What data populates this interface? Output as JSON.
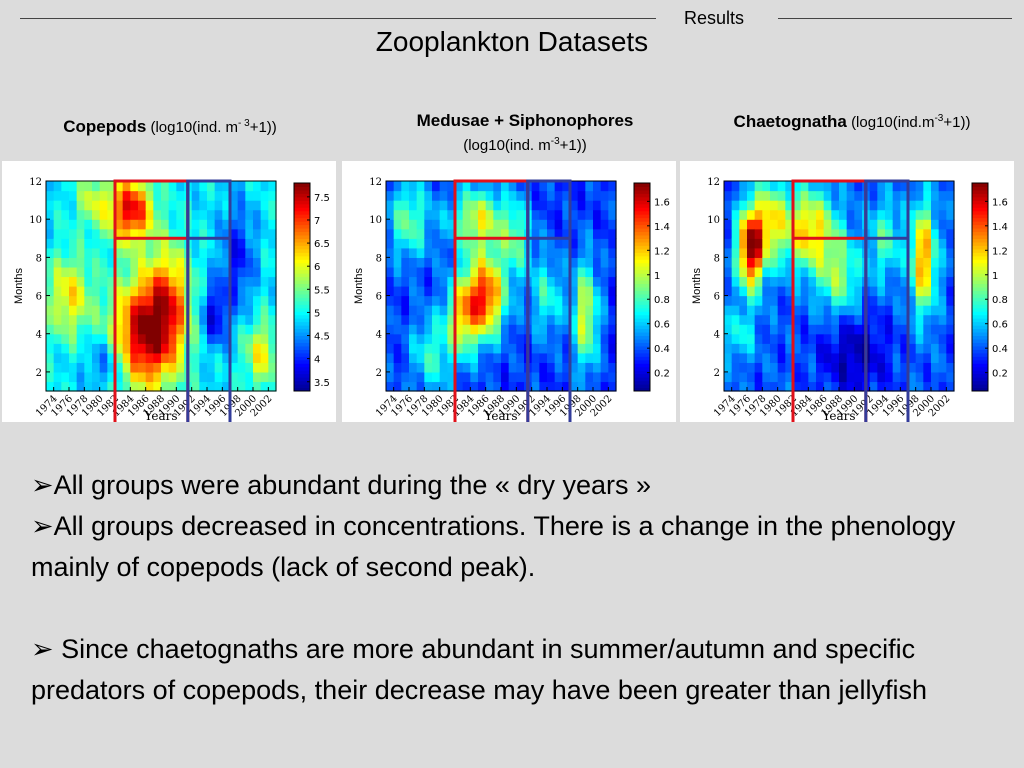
{
  "header": {
    "section": "Results",
    "title": "Zooplankton Datasets"
  },
  "colors": {
    "background": "#dcdcdc",
    "red_box": "#e0101a",
    "blue_box": "#333c9a",
    "colormap": [
      "#00008f",
      "#0000ff",
      "#0080ff",
      "#00ffff",
      "#80ff80",
      "#ffff00",
      "#ff8000",
      "#ff0000",
      "#800000"
    ]
  },
  "panels": [
    {
      "name_bold": "Copepods",
      "unit_prefix": "(log10(ind. m",
      "unit_sup": "- 3",
      "unit_suffix": "+1))"
    },
    {
      "name_bold": "Medusae + Siphonophores",
      "unit_prefix": "(log10(ind. m",
      "unit_sup": "-3",
      "unit_suffix": "+1))"
    },
    {
      "name_bold": "Chaetognatha",
      "unit_prefix": "(log10(ind.m",
      "unit_sup": "-3",
      "unit_suffix": "+1))"
    }
  ],
  "bullets": [
    "➢All groups were abundant during the « dry years »",
    "➢All groups decreased in concentrations. There is a change in the phenology mainly of copepods (lack of second peak).",
    "➢ Since chaetognaths are more abundant in summer/autumn and specific predators of copepods, their decrease may have been greater than jellyfish"
  ],
  "chart_data": [
    {
      "type": "heatmap",
      "title": "Copepods (log10(ind. m- 3+1))",
      "xlabel": "Years",
      "ylabel": "Months",
      "xlim": [
        1973,
        2003
      ],
      "ylim": [
        1,
        12
      ],
      "x_ticks": [
        "1974",
        "1976",
        "1978",
        "1980",
        "1982",
        "1984",
        "1986",
        "1988",
        "1990",
        "1992",
        "1994",
        "1996",
        "1998",
        "2000",
        "2002"
      ],
      "y_ticks": [
        "2",
        "4",
        "6",
        "8",
        "10",
        "12"
      ],
      "colorbar_ticks": [
        "3.5",
        "4",
        "4.5",
        "5",
        "5.5",
        "6",
        "6.5",
        "7",
        "7.5"
      ],
      "colorbar_range": [
        3.3,
        7.8
      ],
      "field": {
        "base": 4.9,
        "bumps": [
          {
            "x": 1986,
            "y": 4,
            "sx": 3,
            "sy": 2,
            "a": 2.8
          },
          {
            "x": 1984,
            "y": 10.5,
            "sx": 2,
            "sy": 1.2,
            "a": 2.5
          },
          {
            "x": 1989,
            "y": 6,
            "sx": 2,
            "sy": 2,
            "a": 1.4
          },
          {
            "x": 1976,
            "y": 6,
            "sx": 2,
            "sy": 1.5,
            "a": 1.3
          },
          {
            "x": 2001,
            "y": 3,
            "sx": 1.5,
            "sy": 1.2,
            "a": 1.2
          },
          {
            "x": 1979,
            "y": 11,
            "sx": 1.5,
            "sy": 1,
            "a": 0.9
          },
          {
            "x": 1995,
            "y": 5,
            "sx": 1.2,
            "sy": 1.2,
            "a": -1.2
          },
          {
            "x": 1998,
            "y": 8,
            "sx": 1.5,
            "sy": 2,
            "a": -1.0
          },
          {
            "x": 1981,
            "y": 2.5,
            "sx": 2,
            "sy": 1,
            "a": -0.8
          }
        ]
      },
      "boxes": [
        {
          "color": "red",
          "x0": 1982,
          "x1": 1991.5,
          "y0": 1,
          "y1": 12
        },
        {
          "color": "red",
          "x0": 1982,
          "x1": 1991.5,
          "y0": 9,
          "y1": 12
        },
        {
          "color": "blue",
          "x0": 1991.5,
          "x1": 1997,
          "y0": 1,
          "y1": 12
        },
        {
          "color": "blue",
          "x0": 1991.5,
          "x1": 1997,
          "y0": 9,
          "y1": 12
        }
      ]
    },
    {
      "type": "heatmap",
      "title": "Medusae + Siphonophores (log10(ind. m-3+1))",
      "xlabel": "Years",
      "ylabel": "Months",
      "xlim": [
        1973,
        2003
      ],
      "ylim": [
        1,
        12
      ],
      "x_ticks": [
        "1974",
        "1976",
        "1978",
        "1980",
        "1982",
        "1984",
        "1986",
        "1988",
        "1990",
        "1992",
        "1994",
        "1996",
        "1998",
        "2000",
        "2002"
      ],
      "y_ticks": [
        "2",
        "4",
        "6",
        "8",
        "10",
        "12"
      ],
      "colorbar_ticks": [
        "0.2",
        "0.4",
        "0.6",
        "0.8",
        "1",
        "1.2",
        "1.4",
        "1.6"
      ],
      "colorbar_range": [
        0.05,
        1.75
      ],
      "field": {
        "base": 0.35,
        "bumps": [
          {
            "x": 1986,
            "y": 6,
            "sx": 1.8,
            "sy": 1.5,
            "a": 1.1
          },
          {
            "x": 1983,
            "y": 5,
            "sx": 1.5,
            "sy": 1.5,
            "a": 0.7
          },
          {
            "x": 1985,
            "y": 10,
            "sx": 2.5,
            "sy": 1.2,
            "a": 0.7
          },
          {
            "x": 1976,
            "y": 10,
            "sx": 2,
            "sy": 1.5,
            "a": 0.5
          },
          {
            "x": 1999,
            "y": 5,
            "sx": 1.2,
            "sy": 2,
            "a": 0.7
          },
          {
            "x": 1994,
            "y": 6,
            "sx": 1.5,
            "sy": 1.5,
            "a": 0.4
          },
          {
            "x": 1979,
            "y": 3,
            "sx": 2,
            "sy": 1.5,
            "a": 0.4
          },
          {
            "x": 1990,
            "y": 9,
            "sx": 1.5,
            "sy": 1.5,
            "a": 0.45
          }
        ]
      },
      "boxes": [
        {
          "color": "red",
          "x0": 1982,
          "x1": 1991.5,
          "y0": 1,
          "y1": 12
        },
        {
          "color": "red",
          "x0": 1982,
          "x1": 1991.5,
          "y0": 9,
          "y1": 12
        },
        {
          "color": "blue",
          "x0": 1991.5,
          "x1": 1997,
          "y0": 1,
          "y1": 12
        },
        {
          "color": "blue",
          "x0": 1991.5,
          "x1": 1997,
          "y0": 9,
          "y1": 12
        }
      ]
    },
    {
      "type": "heatmap",
      "title": "Chaetognatha (log10(ind.m-3+1))",
      "xlabel": "Years",
      "ylabel": "Months",
      "xlim": [
        1973,
        2003
      ],
      "ylim": [
        1,
        12
      ],
      "x_ticks": [
        "1974",
        "1976",
        "1978",
        "1980",
        "1982",
        "1984",
        "1986",
        "1988",
        "1990",
        "1992",
        "1994",
        "1996",
        "1998",
        "2000",
        "2002"
      ],
      "y_ticks": [
        "2",
        "4",
        "6",
        "8",
        "10",
        "12"
      ],
      "colorbar_ticks": [
        "0.2",
        "0.4",
        "0.6",
        "0.8",
        "1",
        "1.2",
        "1.4",
        "1.6"
      ],
      "colorbar_range": [
        0.05,
        1.75
      ],
      "field": {
        "base": 0.4,
        "bumps": [
          {
            "x": 1976.5,
            "y": 8.5,
            "sx": 1.2,
            "sy": 1.5,
            "a": 1.3
          },
          {
            "x": 1984,
            "y": 9.5,
            "sx": 2.5,
            "sy": 1.5,
            "a": 0.8
          },
          {
            "x": 1999,
            "y": 8,
            "sx": 1.2,
            "sy": 2,
            "a": 0.9
          },
          {
            "x": 1979,
            "y": 10,
            "sx": 1.5,
            "sy": 1.5,
            "a": 0.6
          },
          {
            "x": 1988,
            "y": 7,
            "sx": 2,
            "sy": 1.5,
            "a": 0.5
          },
          {
            "x": 1994,
            "y": 9,
            "sx": 1.5,
            "sy": 1.5,
            "a": 0.4
          },
          {
            "x": 1975,
            "y": 4,
            "sx": 1.5,
            "sy": 1,
            "a": 0.3
          },
          {
            "x": 1990,
            "y": 3,
            "sx": 3,
            "sy": 1.5,
            "a": -0.3
          }
        ]
      },
      "boxes": [
        {
          "color": "red",
          "x0": 1982,
          "x1": 1991.5,
          "y0": 1,
          "y1": 12
        },
        {
          "color": "red",
          "x0": 1982,
          "x1": 1991.5,
          "y0": 9,
          "y1": 12
        },
        {
          "color": "blue",
          "x0": 1991.5,
          "x1": 1997,
          "y0": 1,
          "y1": 12
        },
        {
          "color": "blue",
          "x0": 1991.5,
          "x1": 1997,
          "y0": 9,
          "y1": 12
        }
      ]
    }
  ]
}
